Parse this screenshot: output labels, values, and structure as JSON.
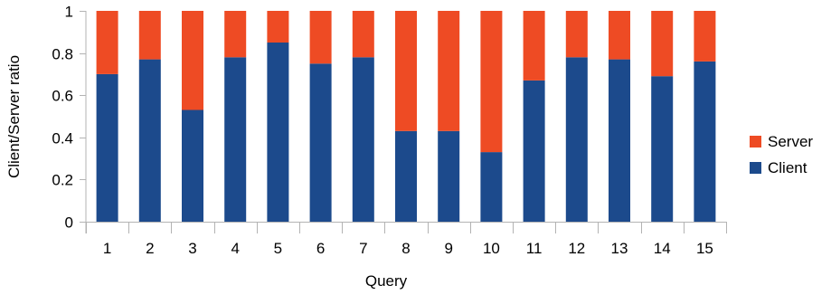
{
  "chart_data": {
    "type": "bar",
    "stacked": true,
    "categories": [
      "1",
      "2",
      "3",
      "4",
      "5",
      "6",
      "7",
      "8",
      "9",
      "10",
      "11",
      "12",
      "13",
      "14",
      "15"
    ],
    "series": [
      {
        "name": "Client",
        "color": "#1c4a8c",
        "values": [
          0.7,
          0.77,
          0.53,
          0.78,
          0.85,
          0.75,
          0.78,
          0.43,
          0.43,
          0.33,
          0.67,
          0.78,
          0.77,
          0.69,
          0.76
        ]
      },
      {
        "name": "Server",
        "color": "#ee4b24",
        "values": [
          0.3,
          0.23,
          0.47,
          0.22,
          0.15,
          0.25,
          0.22,
          0.57,
          0.57,
          0.67,
          0.33,
          0.22,
          0.23,
          0.31,
          0.24
        ]
      }
    ],
    "xlabel": "Query",
    "ylabel": "Client/Server ratio",
    "ylim": [
      0,
      1
    ],
    "yticks": [
      "0",
      "0.2",
      "0.4",
      "0.6",
      "0.8",
      "1"
    ],
    "grid": false,
    "legend": {
      "placement": "right",
      "order": [
        "Server",
        "Client"
      ]
    }
  }
}
